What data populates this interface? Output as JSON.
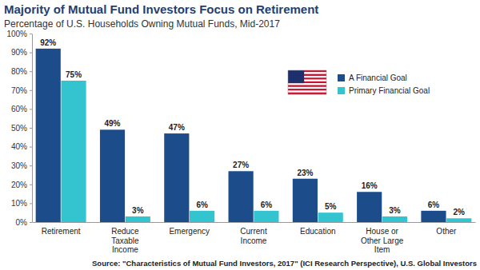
{
  "chart_data": {
    "type": "bar",
    "title": "Majority of Mutual Fund Investors Focus on Retirement",
    "subtitle": "Percentage of U.S. Households Owning Mutual Funds, Mid-2017",
    "source": "Source: \"Characteristics of Mutual Fund Investors, 2017\" (ICI Research Perspective), U.S. Global Investors",
    "categories": [
      "Retirement",
      "Reduce Taxable Income",
      "Emergency",
      "Current Income",
      "Education",
      "House or Other Large Item",
      "Other"
    ],
    "series": [
      {
        "name": "A Financial Goal",
        "color": "#1c4d8a",
        "values": [
          92,
          49,
          47,
          27,
          23,
          16,
          6
        ],
        "value_labels": [
          "92%",
          "49%",
          "47%",
          "27%",
          "23%",
          "16%",
          "6%"
        ]
      },
      {
        "name": "Primary Financial Goal",
        "color": "#33c4cf",
        "values": [
          75,
          3,
          6,
          6,
          5,
          3,
          2
        ],
        "value_labels": [
          "75%",
          "3%",
          "6%",
          "6%",
          "5%",
          "3%",
          "2%"
        ]
      }
    ],
    "ylim": [
      0,
      100
    ],
    "yticks": [
      {
        "value": 0,
        "label": "0%"
      },
      {
        "value": 10,
        "label": "10%"
      },
      {
        "value": 20,
        "label": "20%"
      },
      {
        "value": 30,
        "label": "30%"
      },
      {
        "value": 40,
        "label": "40%"
      },
      {
        "value": 50,
        "label": "50%"
      },
      {
        "value": 60,
        "label": "60%"
      },
      {
        "value": 70,
        "label": "70%"
      },
      {
        "value": 80,
        "label": "80%"
      },
      {
        "value": 90,
        "label": "90%"
      },
      {
        "value": 100,
        "label": "100%"
      }
    ],
    "grid": false,
    "legend": "upper right",
    "data_labels": true
  }
}
